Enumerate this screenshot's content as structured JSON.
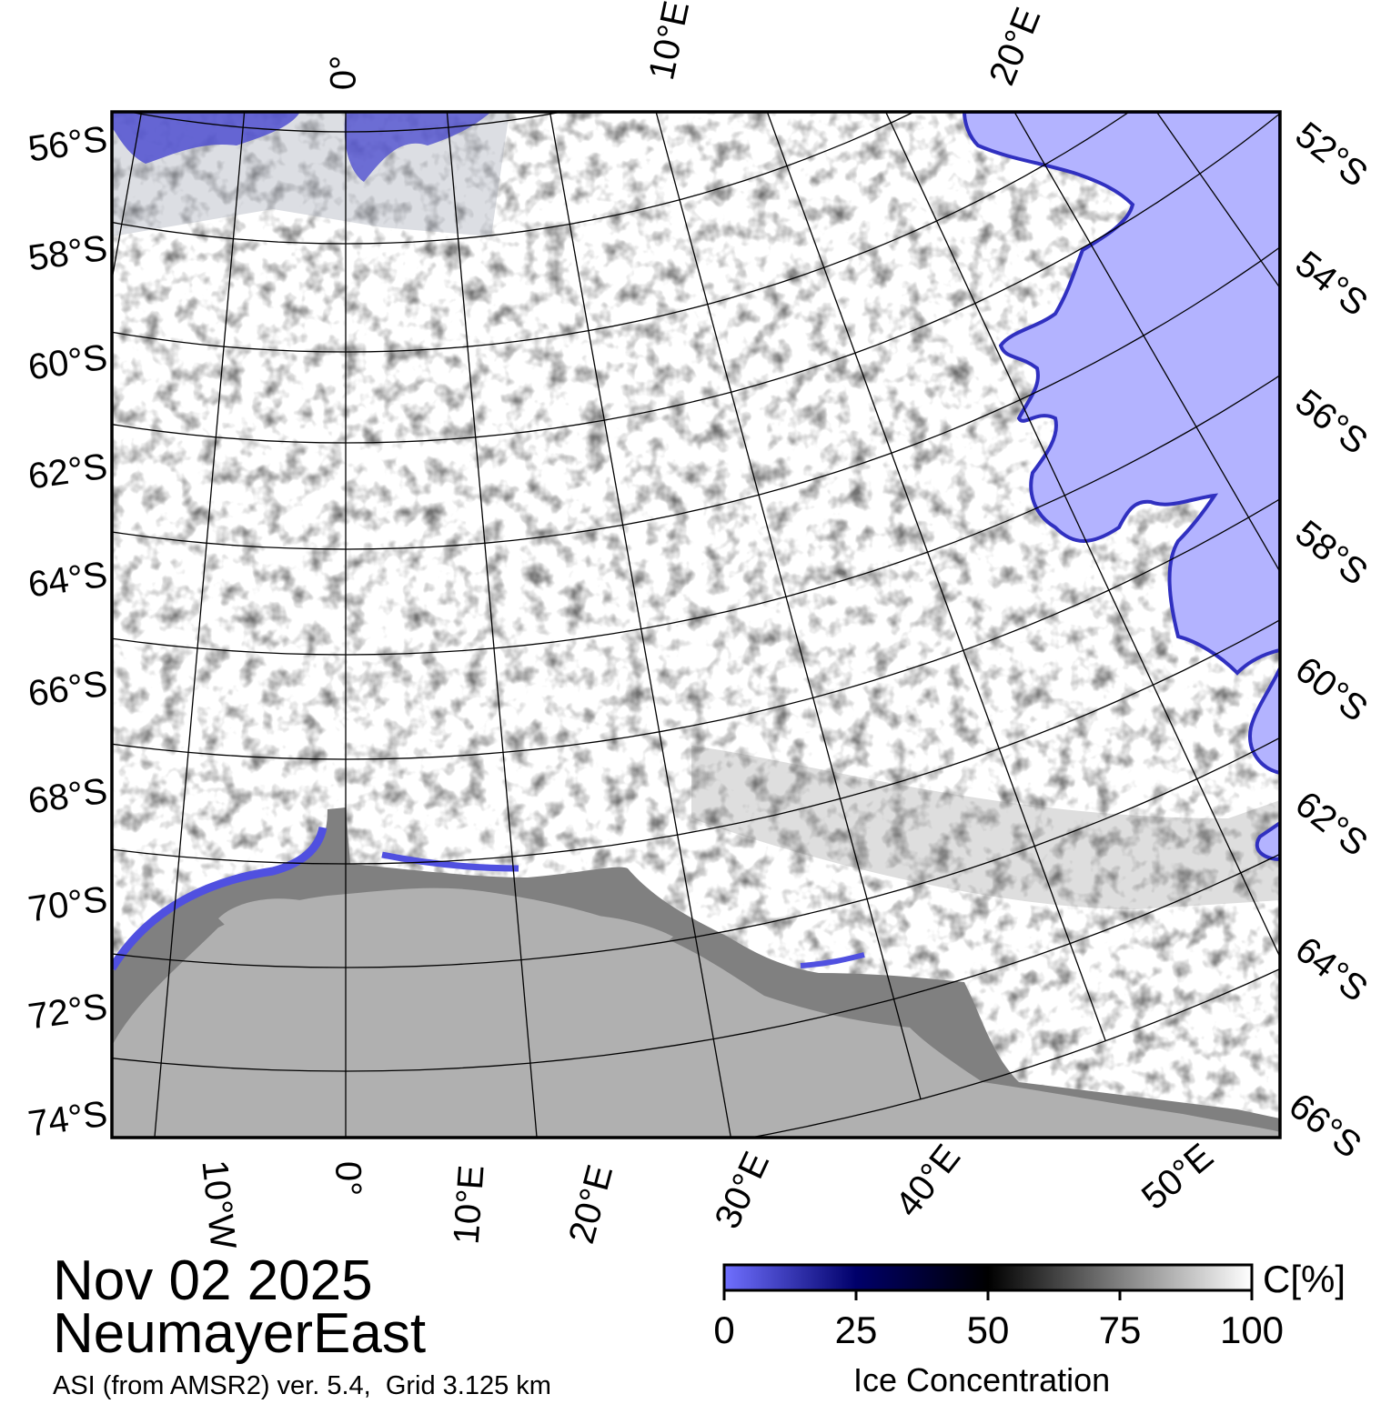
{
  "title": {
    "date": "Nov 02 2025",
    "region": "NeumayerEast"
  },
  "source_note": "ASI (from AMSR2) ver. 5.4,  Grid 3.125 km",
  "colorbar": {
    "unit_label": "C[%]",
    "title": "Ice Concentration",
    "ticks": [
      "0",
      "25",
      "50",
      "75",
      "100"
    ],
    "colors": [
      "#7070ff",
      "#00006a",
      "#000000",
      "#808080",
      "#ffffff"
    ]
  },
  "map": {
    "left_lat_labels": [
      "56°S",
      "58°S",
      "60°S",
      "62°S",
      "64°S",
      "66°S",
      "68°S",
      "70°S",
      "72°S",
      "74°S"
    ],
    "right_lat_labels": [
      "52°S",
      "54°S",
      "56°S",
      "58°S",
      "60°S",
      "62°S",
      "64°S",
      "66°S"
    ],
    "top_lon_labels": [
      "0°",
      "10°E",
      "20°E"
    ],
    "bottom_lon_labels": [
      "10°W",
      "0°",
      "10°E",
      "20°E",
      "30°E",
      "40°E",
      "50°E"
    ],
    "colors": {
      "open_water": "#b3b3ff",
      "land": "#b0b0b0",
      "ice_shelf": "#808080",
      "ice_edge": "#6060e0",
      "full_ice": "#ffffff"
    }
  }
}
